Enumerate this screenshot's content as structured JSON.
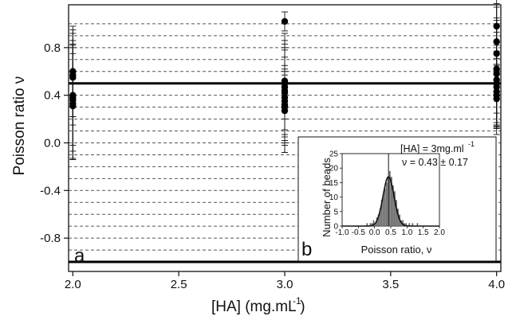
{
  "chart_data": {
    "type": "scatter",
    "xlabel": "[HA] (mg.mL  )",
    "xlabel_superscript": "-1",
    "ylabel": "Poisson ratio ν",
    "xlim": [
      1.98,
      4.02
    ],
    "ylim": [
      -1.08,
      1.16
    ],
    "x_ticks": [
      2.0,
      2.5,
      3.0,
      3.5,
      4.0
    ],
    "x_tick_labels": [
      "2.0",
      "2.5",
      "3.0",
      "3.5",
      "4.0"
    ],
    "y_ticks": [
      -0.8,
      -0.4,
      0.0,
      0.4,
      0.8
    ],
    "y_tick_labels": [
      "-0.8",
      "-0.4",
      "0.0",
      "0.4",
      "0.8"
    ],
    "dashed_gridlines_y": [
      -0.9,
      -0.8,
      -0.7,
      -0.6,
      -0.5,
      -0.4,
      -0.3,
      -0.2,
      -0.1,
      0.0,
      0.1,
      0.2,
      0.3,
      0.4,
      0.5,
      0.6,
      0.7,
      0.8,
      0.9,
      1.0
    ],
    "reference_lines_y": [
      0.5,
      -1.0
    ],
    "grid": true,
    "panel_label": "a",
    "series": [
      {
        "x": 2.0,
        "y": [
          0.6,
          0.57,
          0.55,
          0.4,
          0.38,
          0.36,
          0.33,
          0.31
        ],
        "yerr": [
          0.38,
          0.35,
          0.4,
          0.42,
          0.45,
          0.5,
          0.47,
          0.44
        ]
      },
      {
        "x": 3.0,
        "y": [
          1.02,
          0.52,
          0.5,
          0.47,
          0.44,
          0.42,
          0.38,
          0.35,
          0.32,
          0.3,
          0.27
        ],
        "yerr": [
          0.08,
          0.2,
          0.3,
          0.36,
          0.42,
          0.5,
          0.4,
          0.3,
          0.25,
          0.3,
          0.35
        ]
      },
      {
        "x": 4.0,
        "y": [
          0.98,
          0.85,
          0.75,
          0.62,
          0.58,
          0.53,
          0.5,
          0.47,
          0.43,
          0.4,
          0.37
        ],
        "yerr": [
          0.16,
          0.2,
          0.5,
          0.55,
          0.45,
          0.4,
          0.35,
          0.3,
          0.28,
          0.26,
          0.25
        ]
      }
    ],
    "inset": {
      "type": "histogram",
      "panel_label": "b",
      "xlabel": "Poisson ratio, ν",
      "ylabel": "Number of beads",
      "xlim": [
        -1.0,
        2.0
      ],
      "ylim": [
        0,
        25
      ],
      "x_ticks": [
        -1.0,
        -0.5,
        0.0,
        0.5,
        1.0,
        1.5,
        2.0
      ],
      "x_tick_labels": [
        "-1.0",
        "-0.5",
        "0.0",
        "0.5",
        "1.0",
        "1.5",
        "2.0"
      ],
      "y_ticks": [
        0,
        5,
        10,
        15,
        20,
        25
      ],
      "y_tick_labels": [
        "0",
        "5",
        "10",
        "15",
        "20",
        "25"
      ],
      "annotation_line1": "[HA] = 3mg.ml",
      "annotation_line1_superscript": "-1",
      "annotation_line2": "ν = 0.43 ± 0.17",
      "bin_width": 0.05,
      "bin_start": -0.4,
      "counts": [
        0,
        0,
        0,
        1,
        0,
        1,
        1,
        2,
        1,
        3,
        4,
        6,
        9,
        11,
        13,
        15,
        17,
        19,
        17,
        14,
        12,
        9,
        6,
        4,
        2,
        2,
        1,
        1,
        0,
        1,
        0,
        1,
        0,
        0,
        1,
        0,
        0,
        0
      ],
      "fit_mean": 0.43,
      "fit_sigma": 0.17,
      "fit_peak": 17
    }
  }
}
